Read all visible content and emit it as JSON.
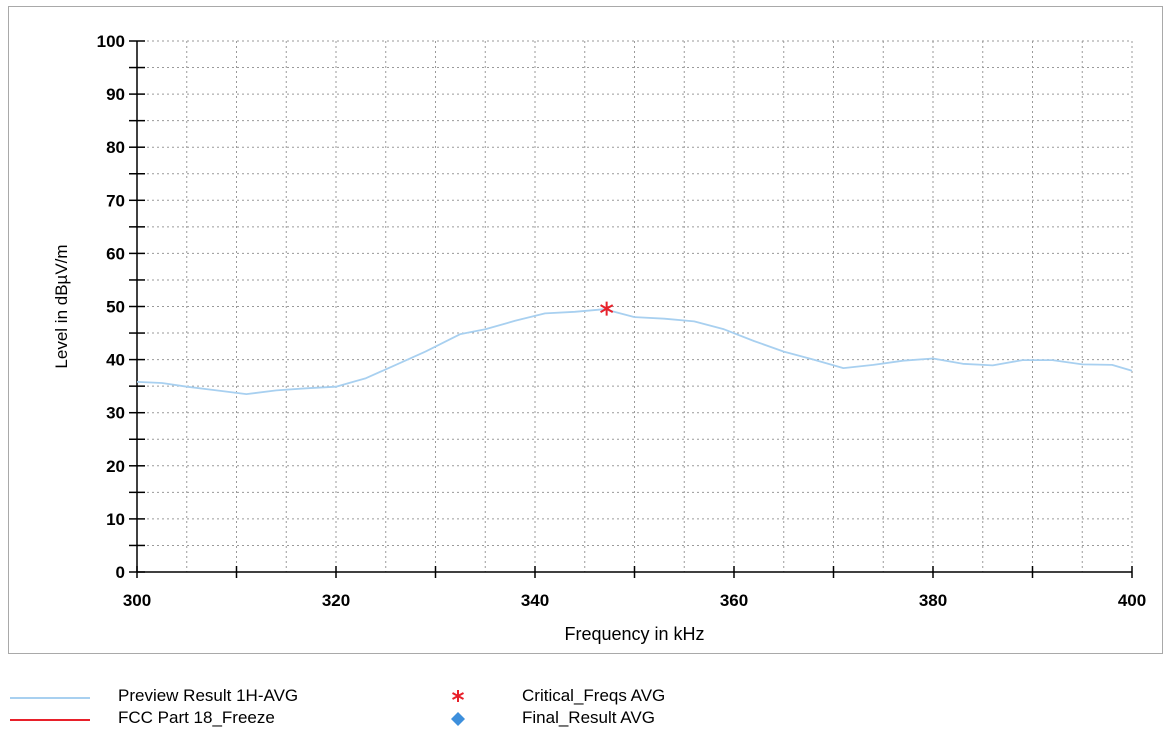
{
  "chart_data": {
    "type": "line",
    "xlabel": "Frequency in kHz",
    "ylabel": "Level in dBµV/m",
    "xlim": [
      300,
      400
    ],
    "ylim": [
      0,
      100
    ],
    "x_ticks": [
      300,
      320,
      340,
      360,
      380,
      400
    ],
    "y_ticks": [
      0,
      10,
      20,
      30,
      40,
      50,
      60,
      70,
      80,
      90,
      100
    ],
    "grid": true,
    "series": [
      {
        "name": "Preview Result 1H-AVG",
        "color": "#a8d0f0",
        "type": "line",
        "x": [
          300,
          302.5,
          305,
          308,
          311,
          314,
          317,
          320,
          323,
          326,
          329,
          332.5,
          335,
          338,
          341,
          344,
          347,
          350,
          353,
          356,
          359,
          362,
          365,
          368,
          371,
          374,
          377,
          380,
          383,
          386,
          389,
          392,
          395,
          398,
          400
        ],
        "y": [
          35.8,
          35.6,
          34.9,
          34.2,
          33.5,
          34.2,
          34.6,
          34.9,
          36.5,
          39.0,
          41.5,
          44.8,
          45.7,
          47.3,
          48.7,
          49.0,
          49.5,
          48.0,
          47.7,
          47.2,
          45.7,
          43.5,
          41.5,
          40.0,
          38.4,
          39.0,
          39.8,
          40.2,
          39.2,
          38.9,
          39.9,
          39.9,
          39.1,
          39.0,
          37.9
        ]
      },
      {
        "name": "Critical_Freqs AVG",
        "color": "#e8202a",
        "type": "marker",
        "x": [
          347.2
        ],
        "y": [
          49.6
        ]
      }
    ],
    "legend": {
      "position": "bottom",
      "items": [
        {
          "label": "Preview Result 1H-AVG",
          "kind": "line",
          "color": "#a8d0f0"
        },
        {
          "label": "FCC Part 18_Freeze",
          "kind": "line",
          "color": "#e8202a"
        },
        {
          "label": "Critical_Freqs AVG",
          "kind": "asterisk",
          "color": "#e8202a"
        },
        {
          "label": "Final_Result AVG",
          "kind": "diamond",
          "color": "#3d8fdc"
        }
      ]
    }
  }
}
